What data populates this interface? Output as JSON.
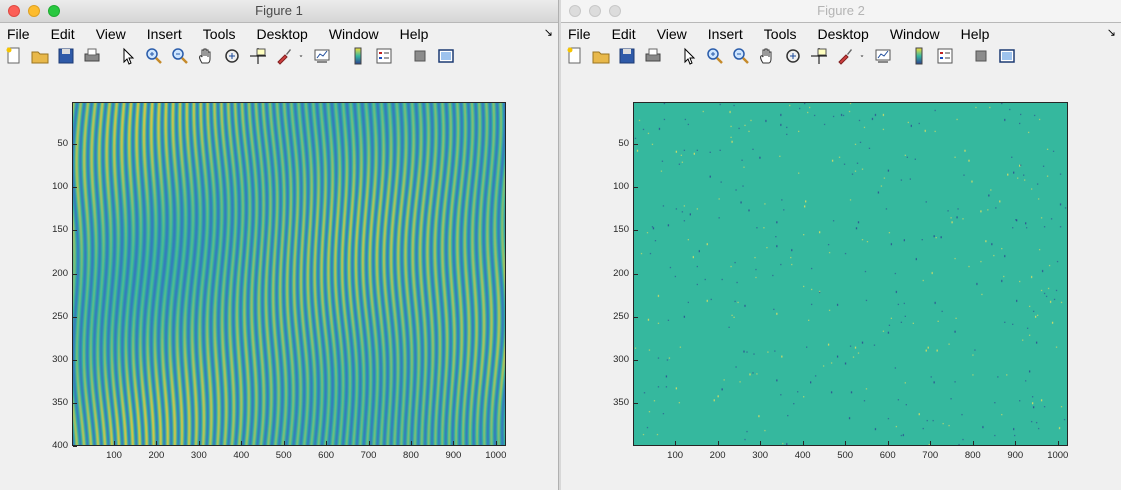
{
  "figures": [
    {
      "title": "Figure 1",
      "active": true,
      "menu": [
        "File",
        "Edit",
        "View",
        "Insert",
        "Tools",
        "Desktop",
        "Window",
        "Help"
      ],
      "dock_glyph": "↘",
      "axis": {
        "yticks": [
          50,
          100,
          150,
          200,
          250,
          300,
          350,
          400
        ],
        "xticks": [
          100,
          200,
          300,
          400,
          500,
          600,
          700,
          800,
          900,
          1000
        ],
        "ylim": [
          1,
          400
        ],
        "xlim": [
          1,
          1024
        ]
      },
      "image_kind": "fringe-pattern",
      "colors": {
        "low": "#3561c8",
        "mid": "#33b7a0",
        "high": "#e8c73b"
      }
    },
    {
      "title": "Figure 2",
      "active": false,
      "menu": [
        "File",
        "Edit",
        "View",
        "Insert",
        "Tools",
        "Desktop",
        "Window",
        "Help"
      ],
      "dock_glyph": "↘",
      "axis": {
        "yticks": [
          50,
          100,
          150,
          200,
          250,
          300,
          350
        ],
        "xticks": [
          100,
          200,
          300,
          400,
          500,
          600,
          700,
          800,
          900,
          1000
        ],
        "ylim": [
          1,
          400
        ],
        "xlim": [
          1,
          1024
        ]
      },
      "image_kind": "uniform-with-speckles",
      "colors": {
        "base": "#35b89e",
        "dark": "#2c3f8f",
        "light": "#f2e55c"
      }
    }
  ],
  "toolbar_icons": [
    "new-figure-icon",
    "open-file-icon",
    "save-icon",
    "print-icon",
    "edit-plot-arrow-icon",
    "zoom-in-icon",
    "zoom-out-icon",
    "pan-hand-icon",
    "rotate-3d-icon",
    "data-cursor-icon",
    "brush-icon",
    "brush-dropdown-icon",
    "link-plot-icon",
    "colorbar-icon",
    "legend-icon",
    "hide-plot-tools-icon",
    "show-plot-tools-icon"
  ]
}
